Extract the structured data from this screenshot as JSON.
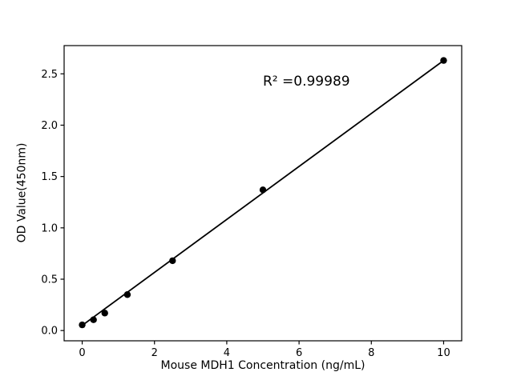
{
  "chart_data": {
    "type": "scatter",
    "title": "",
    "xlabel": "Mouse MDH1 Concentration (ng/mL)",
    "ylabel": "OD Value(450nm)",
    "x": [
      0,
      0.313,
      0.625,
      1.25,
      2.5,
      5,
      10
    ],
    "y": [
      0.055,
      0.105,
      0.17,
      0.35,
      0.68,
      1.37,
      2.63
    ],
    "trendline": {
      "x_start": 0,
      "y_start": 0.05,
      "x_end": 10,
      "y_end": 2.63
    },
    "annotation": {
      "text": "R² =0.99989",
      "x": 5.0,
      "y": 2.37
    },
    "xlim": [
      -0.5,
      10.5
    ],
    "ylim": [
      -0.1,
      2.775
    ],
    "x_ticks": [
      0,
      2,
      4,
      6,
      8,
      10
    ],
    "x_tick_labels": [
      "0",
      "2",
      "4",
      "6",
      "8",
      "10"
    ],
    "y_ticks": [
      0.0,
      0.5,
      1.0,
      1.5,
      2.0,
      2.5
    ],
    "y_tick_labels": [
      "0.0",
      "0.5",
      "1.0",
      "1.5",
      "2.0",
      "2.5"
    ],
    "grid": false,
    "legend": null,
    "marker_color": "#000000",
    "line_color": "#000000",
    "axis_color": "#000000",
    "background_color": "#ffffff"
  }
}
